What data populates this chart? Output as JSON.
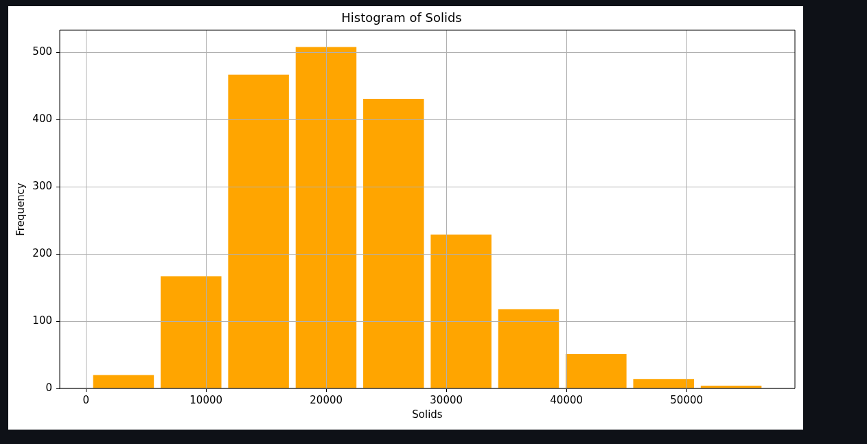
{
  "chart_data": {
    "type": "histogram",
    "title": "Histogram of Solids",
    "xlabel": "Solids",
    "ylabel": "Frequency",
    "bins": [
      320,
      5940,
      11560,
      17180,
      22800,
      28420,
      34040,
      39660,
      45280,
      50900,
      56520
    ],
    "values": [
      20,
      167,
      467,
      508,
      431,
      229,
      118,
      51,
      14,
      4
    ],
    "color": "#ffa500",
    "xlim": [
      -2180,
      59020
    ],
    "xticks": [
      0,
      10000,
      20000,
      30000,
      40000,
      50000
    ],
    "ylim": [
      0,
      533
    ],
    "yticks": [
      0,
      100,
      200,
      300,
      400,
      500
    ],
    "grid": true
  }
}
